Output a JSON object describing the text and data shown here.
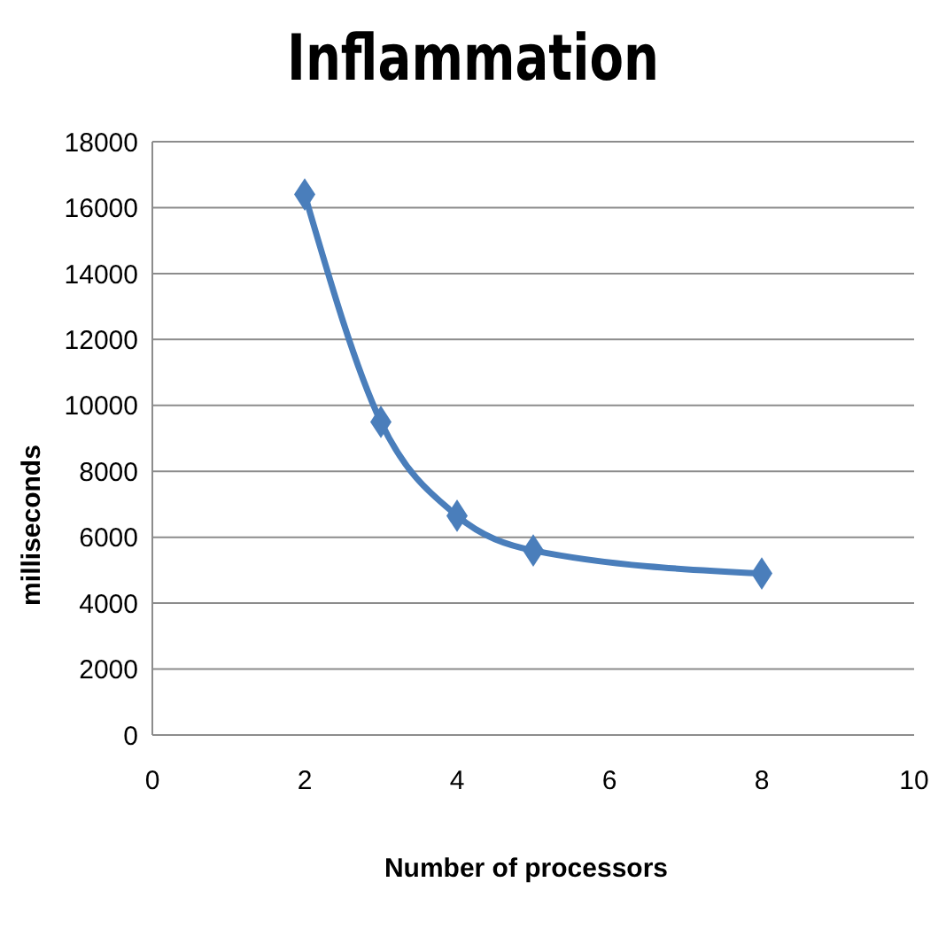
{
  "chart_data": {
    "type": "line",
    "title": "Inflammation",
    "xlabel": "Number of processors",
    "ylabel": "milliseconds",
    "x": [
      2,
      3,
      4,
      5,
      8
    ],
    "series": [
      {
        "color": "#4a7ebb",
        "values": [
          16400,
          9500,
          6650,
          5600,
          4900
        ]
      }
    ],
    "xlim": [
      0,
      10
    ],
    "xticks": [
      0,
      2,
      4,
      6,
      8,
      10
    ],
    "ylim": [
      0,
      18000
    ],
    "yticks": [
      0,
      2000,
      4000,
      6000,
      8000,
      10000,
      12000,
      14000,
      16000,
      18000
    ],
    "grid": "y",
    "legend": false,
    "marker": "diamond",
    "line_style": "solid"
  }
}
